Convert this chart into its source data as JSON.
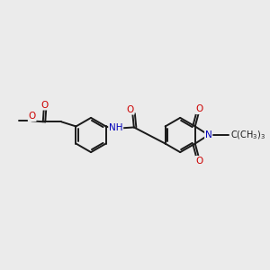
{
  "background_color": "#ebebeb",
  "bond_color": "#1a1a1a",
  "bond_lw": 1.4,
  "dbo": 0.05,
  "atom_colors": {
    "O": "#cc0000",
    "N": "#0000bb",
    "C": "#1a1a1a"
  },
  "font_size": 7.5,
  "figsize": [
    3.0,
    3.0
  ],
  "dpi": 100,
  "xlim": [
    -2.6,
    2.9
  ],
  "ylim": [
    -1.3,
    1.3
  ]
}
